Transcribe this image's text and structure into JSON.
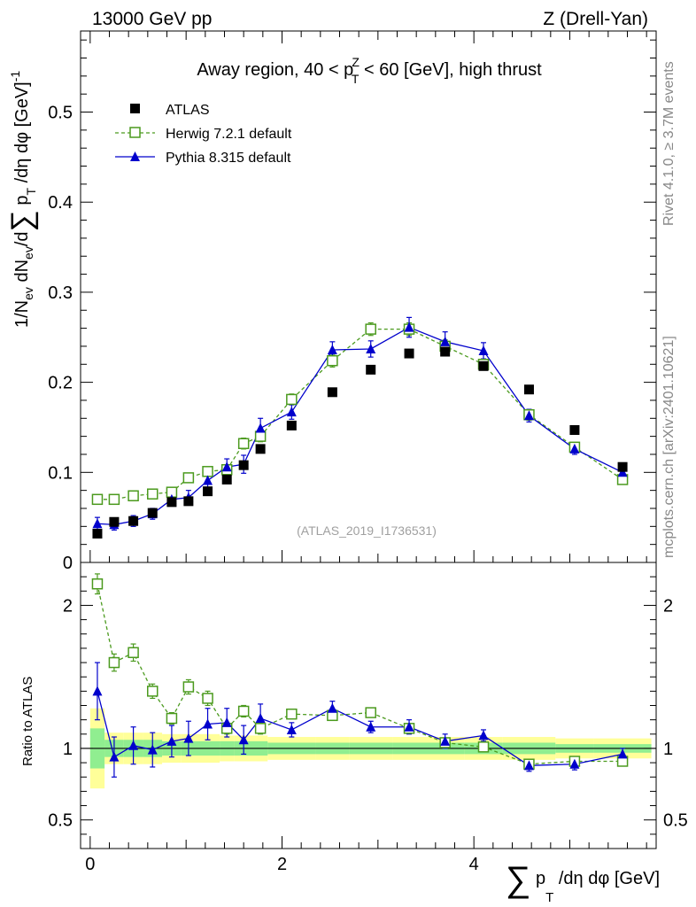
{
  "header": {
    "left": "13000 GeV pp",
    "right": "Z (Drell-Yan)"
  },
  "side_labels": {
    "rivet": "Rivet 4.1.0, ≥ 3.7M events",
    "mcplots": "mcplots.cern.ch [arXiv:2401.10621]"
  },
  "colors": {
    "atlas": "#000000",
    "herwig": "#4b9a1e",
    "pythia": "#0000cc",
    "band_stat": "#90ee90",
    "band_total": "#ffff99"
  },
  "chart_data": [
    {
      "type": "scatter",
      "panel": "main",
      "title_parts": {
        "pre": "Away region, 40 < p",
        "sup": "Z",
        "sub": "T",
        "post": " < 60 [GeV], high thrust"
      },
      "ylabel": "1/N_ev dN_ev/d∑ p_T /dη dφ [GeV]^-1",
      "ylabel_parts": {
        "a": "1/N",
        "a_sub": "ev",
        "b": " dN",
        "b_sub": "ev",
        "c": "/d",
        "sum": "∑",
        "d": " p",
        "d_sub": "T",
        "e": " /dη dφ  [GeV]",
        "e_sup": "-1"
      },
      "ylim": [
        0,
        0.59
      ],
      "xlim": [
        -0.1,
        5.9
      ],
      "y_ticks": [
        0,
        0.1,
        0.2,
        0.3,
        0.4,
        0.5
      ],
      "y_tick_labels": [
        "0",
        "0.1",
        "0.2",
        "0.3",
        "0.4",
        "0.5"
      ],
      "watermark": "(ATLAS_2019_I1736531)",
      "legend_position": "top-left",
      "x": [
        0.075,
        0.25,
        0.45,
        0.65,
        0.85,
        1.025,
        1.225,
        1.425,
        1.6,
        1.775,
        2.1,
        2.525,
        2.925,
        3.325,
        3.7,
        4.1,
        4.575,
        5.05,
        5.55
      ],
      "series": [
        {
          "name": "ATLAS",
          "marker": "filled-square",
          "values": [
            0.032,
            0.045,
            0.046,
            0.055,
            0.067,
            0.068,
            0.079,
            0.092,
            0.108,
            0.126,
            0.152,
            0.189,
            0.214,
            0.232,
            0.234,
            0.218,
            0.192,
            0.147,
            0.106
          ]
        },
        {
          "name": "Herwig 7.2.1 default",
          "marker": "open-square",
          "line": "dashed",
          "values": [
            0.07,
            0.07,
            0.074,
            0.076,
            0.078,
            0.094,
            0.101,
            0.103,
            0.132,
            0.14,
            0.181,
            0.224,
            0.259,
            0.259,
            0.24,
            0.22,
            0.164,
            0.128,
            0.092
          ],
          "errors": [
            0.004,
            0.004,
            0.004,
            0.004,
            0.004,
            0.005,
            0.005,
            0.005,
            0.006,
            0.006,
            0.006,
            0.007,
            0.007,
            0.007,
            0.007,
            0.006,
            0.006,
            0.005,
            0.005
          ]
        },
        {
          "name": "Pythia 8.315 default",
          "marker": "filled-triangle",
          "line": "solid",
          "values": [
            0.043,
            0.042,
            0.046,
            0.054,
            0.07,
            0.072,
            0.091,
            0.106,
            0.109,
            0.149,
            0.167,
            0.236,
            0.237,
            0.261,
            0.245,
            0.235,
            0.163,
            0.126,
            0.1
          ],
          "errors": [
            0.007,
            0.006,
            0.006,
            0.006,
            0.007,
            0.008,
            0.009,
            0.009,
            0.01,
            0.011,
            0.008,
            0.009,
            0.009,
            0.011,
            0.011,
            0.009,
            0.007,
            0.006,
            0.005
          ]
        }
      ]
    },
    {
      "type": "scatter",
      "panel": "ratio",
      "ylabel": "Ratio to ATLAS",
      "xlabel_parts": {
        "sum": "∑",
        "a": " p",
        "a_sub": "T",
        "b": " /dη dφ [GeV]"
      },
      "ylim": [
        0.3,
        2.3
      ],
      "xlim": [
        -0.1,
        5.9
      ],
      "y_ticks": [
        0.5,
        1,
        2
      ],
      "y_tick_labels": [
        "0.5",
        "1",
        "2"
      ],
      "x_ticks": [
        0,
        2,
        4
      ],
      "x_tick_labels": [
        "0",
        "2",
        "4"
      ],
      "x": [
        0.075,
        0.25,
        0.45,
        0.65,
        0.85,
        1.025,
        1.225,
        1.425,
        1.6,
        1.775,
        2.1,
        2.525,
        2.925,
        3.325,
        3.7,
        4.1,
        4.575,
        5.05,
        5.55
      ],
      "bin_edges": [
        0.0,
        0.15,
        0.35,
        0.55,
        0.75,
        0.95,
        1.1,
        1.35,
        1.5,
        1.7,
        1.85,
        2.35,
        2.7,
        3.15,
        3.5,
        3.9,
        4.3,
        4.85,
        5.25,
        5.85
      ],
      "band_total_halfwidth": [
        0.28,
        0.11,
        0.11,
        0.11,
        0.1,
        0.1,
        0.1,
        0.09,
        0.09,
        0.09,
        0.08,
        0.08,
        0.08,
        0.08,
        0.08,
        0.08,
        0.08,
        0.07,
        0.07
      ],
      "band_stat_halfwidth": [
        0.14,
        0.06,
        0.06,
        0.06,
        0.05,
        0.05,
        0.05,
        0.05,
        0.05,
        0.05,
        0.04,
        0.04,
        0.04,
        0.04,
        0.04,
        0.04,
        0.04,
        0.03,
        0.03
      ],
      "series": [
        {
          "name": "Herwig 7.2.1 default",
          "values": [
            2.15,
            1.6,
            1.67,
            1.4,
            1.21,
            1.43,
            1.35,
            1.14,
            1.26,
            1.14,
            1.24,
            1.23,
            1.25,
            1.14,
            1.04,
            1.01,
            0.89,
            0.91,
            0.91
          ],
          "errors": [
            0.07,
            0.06,
            0.06,
            0.05,
            0.04,
            0.05,
            0.05,
            0.04,
            0.04,
            0.04,
            0.03,
            0.03,
            0.03,
            0.03,
            0.03,
            0.03,
            0.03,
            0.03,
            0.03
          ]
        },
        {
          "name": "Pythia 8.315 default",
          "values": [
            1.4,
            0.94,
            1.02,
            0.99,
            1.05,
            1.07,
            1.17,
            1.18,
            1.06,
            1.21,
            1.13,
            1.28,
            1.15,
            1.15,
            1.05,
            1.09,
            0.88,
            0.89,
            0.96
          ],
          "errors": [
            0.2,
            0.14,
            0.13,
            0.12,
            0.11,
            0.12,
            0.11,
            0.1,
            0.1,
            0.1,
            0.05,
            0.05,
            0.04,
            0.05,
            0.05,
            0.04,
            0.04,
            0.04,
            0.04
          ]
        }
      ]
    }
  ]
}
